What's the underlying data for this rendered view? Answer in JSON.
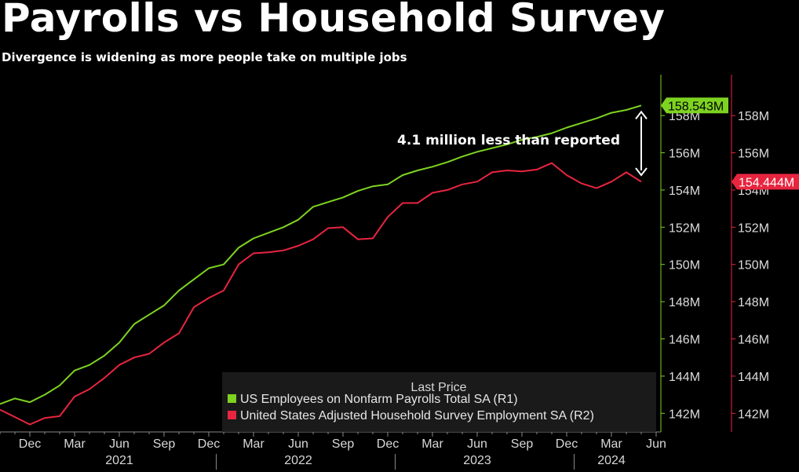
{
  "header": {
    "title": "Payrolls vs Household Survey",
    "subtitle": "Divergence is widening as more people take on multiple jobs"
  },
  "colors": {
    "payrolls": "#7ed321",
    "household": "#e8253f",
    "background": "#000000",
    "legend_bg": "#1c1c1c"
  },
  "chart_data": {
    "type": "line",
    "title": "Payrolls vs Household Survey",
    "subtitle": "Divergence is widening as more people take on multiple jobs",
    "x": [
      "2020-10",
      "2020-11",
      "2020-12",
      "2021-01",
      "2021-02",
      "2021-03",
      "2021-04",
      "2021-05",
      "2021-06",
      "2021-07",
      "2021-08",
      "2021-09",
      "2021-10",
      "2021-11",
      "2021-12",
      "2022-01",
      "2022-02",
      "2022-03",
      "2022-04",
      "2022-05",
      "2022-06",
      "2022-07",
      "2022-08",
      "2022-09",
      "2022-10",
      "2022-11",
      "2022-12",
      "2023-01",
      "2023-02",
      "2023-03",
      "2023-04",
      "2023-05",
      "2023-06",
      "2023-07",
      "2023-08",
      "2023-09",
      "2023-10",
      "2023-11",
      "2023-12",
      "2024-01",
      "2024-02",
      "2024-03",
      "2024-04",
      "2024-05"
    ],
    "series": [
      {
        "name": "US Employees on Nonfarm Payrolls Total SA (R1)",
        "axis": "right-1",
        "color": "#7ed321",
        "last_price": "158.543M",
        "values": [
          142.5,
          142.8,
          142.6,
          143.0,
          143.5,
          144.3,
          144.6,
          145.1,
          145.8,
          146.8,
          147.3,
          147.8,
          148.6,
          149.2,
          149.8,
          150.0,
          150.9,
          151.4,
          151.7,
          152.0,
          152.4,
          153.1,
          153.35,
          153.6,
          153.95,
          154.2,
          154.3,
          154.8,
          155.05,
          155.25,
          155.5,
          155.8,
          156.05,
          156.25,
          156.45,
          156.7,
          156.85,
          157.05,
          157.35,
          157.6,
          157.85,
          158.15,
          158.3,
          158.543
        ]
      },
      {
        "name": "United States Adjusted Household Survey Employment SA (R2)",
        "axis": "right-2",
        "color": "#e8253f",
        "last_price": "154.444M",
        "values": [
          142.2,
          141.8,
          141.4,
          141.75,
          141.85,
          142.9,
          143.3,
          143.9,
          144.6,
          145.0,
          145.2,
          145.8,
          146.3,
          147.7,
          148.2,
          148.6,
          150.0,
          150.6,
          150.65,
          150.75,
          151.0,
          151.35,
          151.95,
          152.0,
          151.35,
          151.4,
          152.55,
          153.3,
          153.3,
          153.85,
          154.0,
          154.3,
          154.45,
          154.95,
          155.05,
          155.0,
          155.1,
          155.45,
          154.8,
          154.35,
          154.1,
          154.45,
          154.95,
          154.444
        ]
      }
    ],
    "x_tick_labels": [
      {
        "x": "2020-12",
        "label": "Dec"
      },
      {
        "x": "2021-03",
        "label": "Mar"
      },
      {
        "x": "2021-06",
        "label": "Jun"
      },
      {
        "x": "2021-09",
        "label": "Sep"
      },
      {
        "x": "2021-12",
        "label": "Dec"
      },
      {
        "x": "2022-03",
        "label": "Mar"
      },
      {
        "x": "2022-06",
        "label": "Jun"
      },
      {
        "x": "2022-09",
        "label": "Sep"
      },
      {
        "x": "2022-12",
        "label": "Dec"
      },
      {
        "x": "2023-03",
        "label": "Mar"
      },
      {
        "x": "2023-06",
        "label": "Jun"
      },
      {
        "x": "2023-09",
        "label": "Sep"
      },
      {
        "x": "2023-12",
        "label": "Dec"
      },
      {
        "x": "2024-03",
        "label": "Mar"
      },
      {
        "x": "2024-06",
        "label": "Jun"
      }
    ],
    "year_labels": [
      {
        "x": "2021-06",
        "label": "2021"
      },
      {
        "x": "2022-06",
        "label": "2022"
      },
      {
        "x": "2023-06",
        "label": "2023"
      },
      {
        "x": "2024-03",
        "label": "2024"
      }
    ],
    "x_range": [
      "2020-10",
      "2024-06"
    ],
    "y_axis_1": {
      "ticks": [
        142,
        144,
        146,
        148,
        150,
        152,
        154,
        156,
        158
      ],
      "tick_labels": [
        "142M",
        "144M",
        "146M",
        "148M",
        "150M",
        "152M",
        "154M",
        "156M",
        "158M"
      ],
      "range": [
        141,
        160.2
      ]
    },
    "y_axis_2": {
      "ticks": [
        142,
        144,
        146,
        148,
        150,
        152,
        154,
        156,
        158
      ],
      "tick_labels": [
        "142M",
        "144M",
        "146M",
        "148M",
        "150M",
        "152M",
        "154M",
        "156M",
        "158M"
      ],
      "range": [
        141,
        160.2
      ]
    },
    "annotation": {
      "text": "4.1 million less than reported",
      "arrow_from": 158.2,
      "arrow_to": 154.8
    },
    "legend": {
      "title": "Last Price",
      "placement": "bottom-right"
    },
    "grid": false
  }
}
